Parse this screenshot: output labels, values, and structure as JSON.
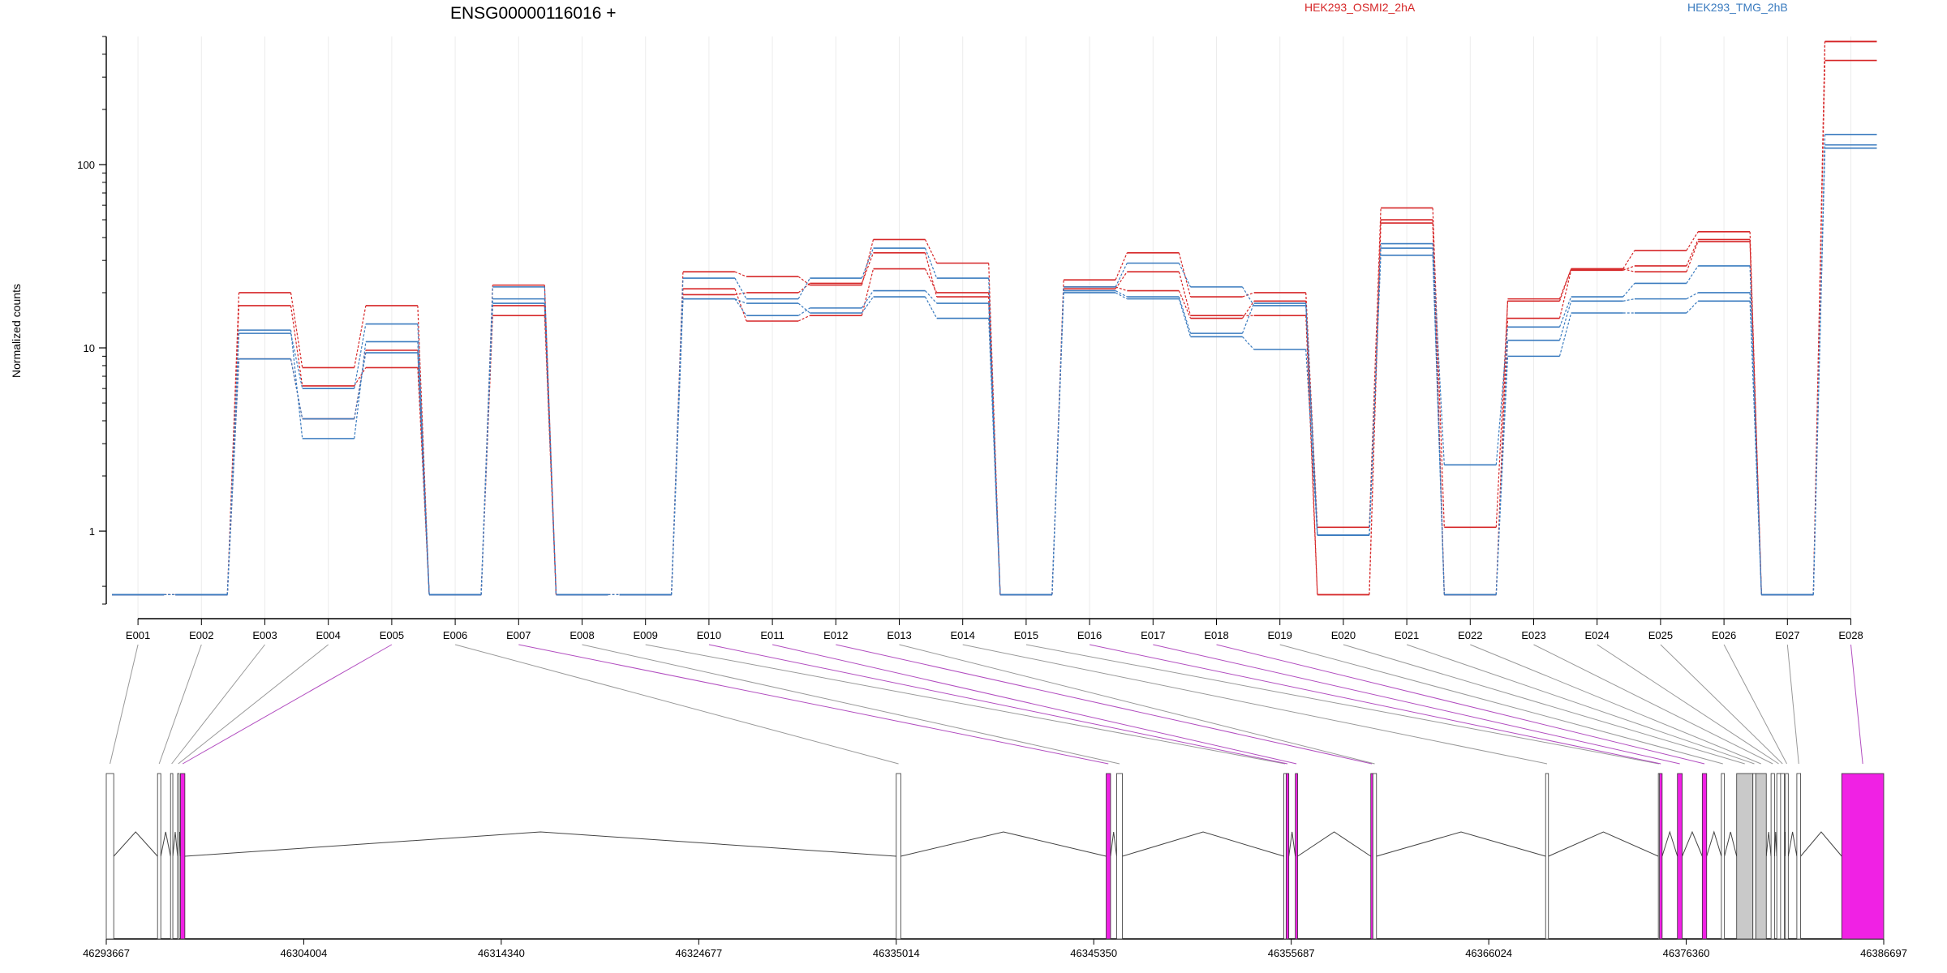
{
  "chart_data": {
    "type": "line",
    "title": "ENSG00000116016 +",
    "ylabel": "Normalized counts",
    "xlabel": "",
    "y_scale": "log",
    "ylim": [
      0.4,
      500
    ],
    "y_ticks": [
      1,
      10,
      100
    ],
    "y_tick_labels": [
      "1",
      "10",
      "100"
    ],
    "grid": "vertical light lines at exon centers",
    "legend_placement": "top",
    "colors": {
      "osmi": "#d62728",
      "tmg": "#3a7bbf",
      "exon_highlight": "#f021e4",
      "exon_gray": "#c9c9c9"
    },
    "categories": [
      "E001",
      "E002",
      "E003",
      "E004",
      "E005",
      "E006",
      "E007",
      "E008",
      "E009",
      "E010",
      "E011",
      "E012",
      "E013",
      "E014",
      "E015",
      "E016",
      "E017",
      "E018",
      "E019",
      "E020",
      "E021",
      "E022",
      "E023",
      "E024",
      "E025",
      "E026",
      "E027",
      "E028"
    ],
    "legend": [
      {
        "name": "HEK293_OSMI2_2hA",
        "color": "#d62728"
      },
      {
        "name": "HEK293_TMG_2hB",
        "color": "#3a7bbf"
      }
    ],
    "series": [
      {
        "group": "HEK293_OSMI2_2hA",
        "color": "#d62728",
        "values": [
          0.45,
          0.45,
          20,
          7.8,
          17,
          0.45,
          22,
          0.45,
          0.45,
          26,
          24.5,
          22,
          39,
          29,
          0.45,
          23.5,
          33,
          19,
          20,
          1.05,
          58,
          1.05,
          18,
          27,
          34,
          43,
          0.45,
          470
        ]
      },
      {
        "group": "HEK293_OSMI2_2hA",
        "color": "#d62728",
        "values": [
          0.45,
          0.45,
          17,
          6.2,
          7.8,
          0.45,
          15,
          0.45,
          0.45,
          21,
          14,
          15,
          27,
          20,
          0.45,
          21,
          26,
          15,
          15,
          0.45,
          48,
          0.45,
          14.5,
          26.5,
          28,
          39,
          0.45,
          370
        ]
      },
      {
        "group": "HEK293_OSMI2_2hA",
        "color": "#d62728",
        "values": [
          0.45,
          0.45,
          8.7,
          4.1,
          9.7,
          0.45,
          17,
          0.45,
          0.45,
          19.5,
          20,
          22.5,
          33,
          19,
          0.45,
          21.5,
          20.5,
          14.5,
          18,
          0.45,
          50,
          0.45,
          18.5,
          27,
          26,
          38,
          0.45,
          468
        ]
      },
      {
        "group": "HEK293_TMG_2hB",
        "color": "#3a7bbf",
        "values": [
          0.45,
          0.45,
          12,
          6,
          13.5,
          0.45,
          18.5,
          0.45,
          0.45,
          24,
          18.5,
          24,
          35,
          24,
          0.45,
          21.5,
          29,
          21.5,
          17,
          0.95,
          37,
          2.3,
          13,
          19,
          22.5,
          28,
          0.45,
          146
        ]
      },
      {
        "group": "HEK293_TMG_2hB",
        "color": "#3a7bbf",
        "values": [
          0.45,
          0.45,
          12.5,
          3.2,
          10.8,
          0.45,
          17.5,
          0.45,
          0.45,
          18.5,
          15,
          16.5,
          20.5,
          17.5,
          0.45,
          20.5,
          19,
          12,
          17.5,
          0.95,
          35,
          0.45,
          11,
          18,
          18.5,
          20,
          0.45,
          128
        ]
      },
      {
        "group": "HEK293_TMG_2hB",
        "color": "#3a7bbf",
        "values": [
          0.45,
          0.45,
          8.7,
          4.1,
          9.4,
          0.45,
          21.5,
          0.45,
          0.45,
          18.5,
          17.5,
          15.5,
          19,
          14.5,
          0.45,
          20,
          18.5,
          11.5,
          9.8,
          0.95,
          32,
          0.45,
          9,
          15.5,
          15.5,
          18,
          0.45,
          123
        ]
      }
    ],
    "gene_model": {
      "coordinate_ticks": [
        46293667,
        46304004,
        46314340,
        46324677,
        46335014,
        46345350,
        46355687,
        46366024,
        46376360,
        46386697
      ],
      "coordinate_tick_labels": [
        "46293667",
        "46304004",
        "46314340",
        "46324677",
        "46335014",
        "46345350",
        "46355687",
        "46366024",
        "46376360",
        "46386697"
      ],
      "exons": [
        {
          "id": "E001",
          "start": 46293667,
          "end": 46294057,
          "highlight": false
        },
        {
          "id": "E002",
          "start": 46296350,
          "end": 46296520,
          "highlight": false
        },
        {
          "id": "E003",
          "start": 46297030,
          "end": 46297150,
          "highlight": false
        },
        {
          "id": "E004",
          "start": 46297400,
          "end": 46297470,
          "highlight": false
        },
        {
          "id": "E005",
          "start": 46297550,
          "end": 46297780,
          "highlight": true
        },
        {
          "id": "E006",
          "start": 46335014,
          "end": 46335250,
          "highlight": false
        },
        {
          "id": "E007",
          "start": 46346000,
          "end": 46346230,
          "highlight": true
        },
        {
          "id": "E008",
          "start": 46346550,
          "end": 46346850,
          "highlight": false
        },
        {
          "id": "E009",
          "start": 46355300,
          "end": 46355420,
          "highlight": false
        },
        {
          "id": "E010",
          "start": 46355420,
          "end": 46355560,
          "highlight": true
        },
        {
          "id": "E011",
          "start": 46355900,
          "end": 46356020,
          "highlight": true
        },
        {
          "id": "E012",
          "start": 46359850,
          "end": 46359960,
          "highlight": true
        },
        {
          "id": "E013",
          "start": 46359960,
          "end": 46360150,
          "highlight": false
        },
        {
          "id": "E014",
          "start": 46369000,
          "end": 46369150,
          "highlight": false
        },
        {
          "id": "E015",
          "start": 46374900,
          "end": 46374960,
          "highlight": false
        },
        {
          "id": "E016",
          "start": 46374960,
          "end": 46375100,
          "highlight": true
        },
        {
          "id": "E017",
          "start": 46375900,
          "end": 46376150,
          "highlight": true
        },
        {
          "id": "E018",
          "start": 46377200,
          "end": 46377430,
          "highlight": true
        },
        {
          "id": "E019",
          "start": 46378200,
          "end": 46378360,
          "highlight": false
        },
        {
          "id": "E020",
          "start": 46379000,
          "end": 46379850,
          "highlight": false
        },
        {
          "id": "E021",
          "start": 46379850,
          "end": 46380000,
          "highlight": false
        },
        {
          "id": "E022",
          "start": 46380000,
          "end": 46380550,
          "highlight": false
        },
        {
          "id": "E023",
          "start": 46380800,
          "end": 46380980,
          "highlight": false
        },
        {
          "id": "E024",
          "start": 46381100,
          "end": 46381300,
          "highlight": false
        },
        {
          "id": "E025",
          "start": 46381300,
          "end": 46381500,
          "highlight": false
        },
        {
          "id": "E026",
          "start": 46381550,
          "end": 46381700,
          "highlight": false
        },
        {
          "id": "E027",
          "start": 46382150,
          "end": 46382350,
          "highlight": false
        },
        {
          "id": "E028",
          "start": 46384500,
          "end": 46386697,
          "highlight": true
        }
      ]
    }
  }
}
